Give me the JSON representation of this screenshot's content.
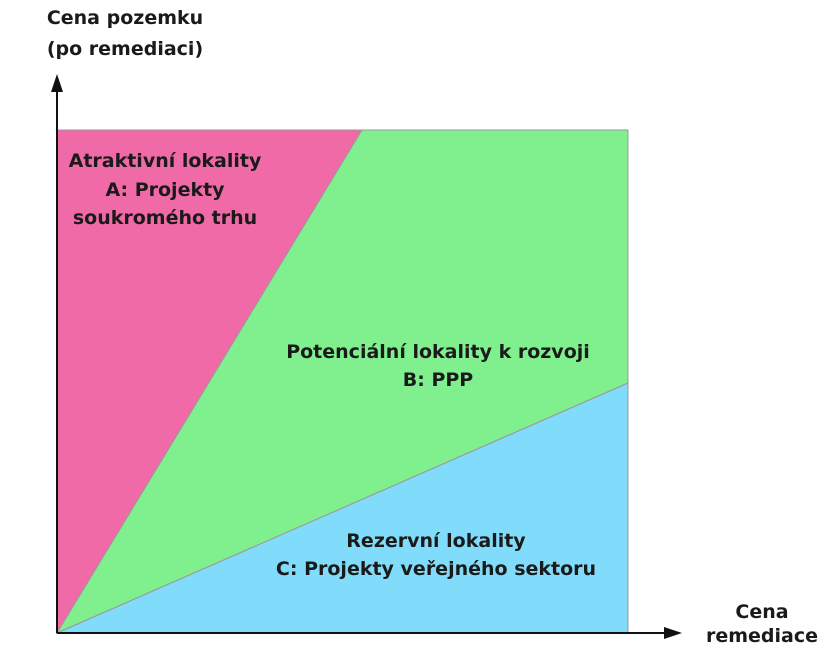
{
  "axes": {
    "y_label": [
      "Cena pozemku",
      "(po remediaci)"
    ],
    "x_label": [
      "Cena",
      "remediace"
    ]
  },
  "regions": [
    {
      "lines": [
        "Atraktivní lokality",
        "A: Projekty",
        "soukromého trhu"
      ]
    },
    {
      "lines": [
        "Potenciální lokality k rozvoji",
        "B: PPP"
      ]
    },
    {
      "lines": [
        "Rezervní lokality",
        "C: Projekty veřejného sektoru"
      ]
    }
  ]
}
